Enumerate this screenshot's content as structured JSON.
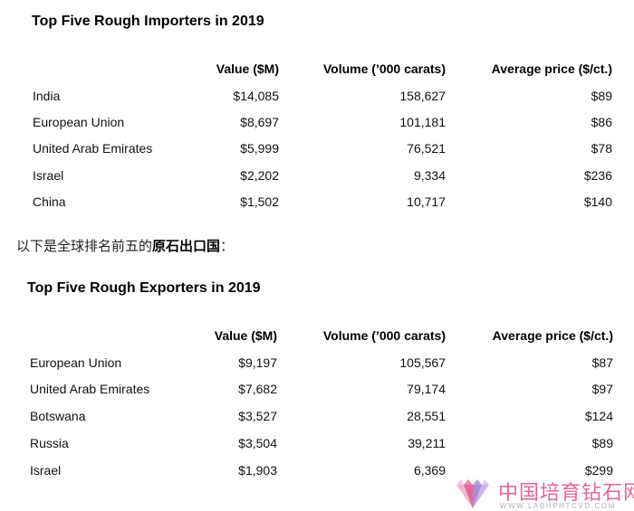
{
  "importers": {
    "title": "Top Five Rough Importers in 2019",
    "headers": [
      "",
      "Value ($M)",
      "Volume (’000 carats)",
      "Average price ($/ct.)"
    ],
    "rows": [
      [
        "India",
        "$14,085",
        "158,627",
        "$89"
      ],
      [
        "European Union",
        "$8,697",
        "101,181",
        "$86"
      ],
      [
        "United Arab Emirates",
        "$5,999",
        "76,521",
        "$78"
      ],
      [
        "Israel",
        "$2,202",
        "9,334",
        "$236"
      ],
      [
        "China",
        "$1,502",
        "10,717",
        "$140"
      ]
    ]
  },
  "caption": {
    "prefix": "以下是全球排名前五的",
    "bold": "原石出口国",
    "suffix": "："
  },
  "exporters": {
    "title": "Top Five Rough Exporters in 2019",
    "headers": [
      "",
      "Value ($M)",
      "Volume (’000 carats)",
      "Average price ($/ct.)"
    ],
    "rows": [
      [
        "European Union",
        "$9,197",
        "105,567",
        "$87"
      ],
      [
        "United Arab Emirates",
        "$7,682",
        "79,174",
        "$97"
      ],
      [
        "Botswana",
        "$3,527",
        "28,551",
        "$124"
      ],
      [
        "Russia",
        "$3,504",
        "39,211",
        "$89"
      ],
      [
        "Israel",
        "$1,903",
        "6,369",
        "$299"
      ]
    ]
  },
  "watermark": {
    "name_cn": "中国培育钻石网",
    "url": "WWW.LABHPHTCVD.COM",
    "colors": {
      "pink": "#e0679b",
      "purple": "#a98bd6",
      "light": "#f4b3d2"
    }
  }
}
